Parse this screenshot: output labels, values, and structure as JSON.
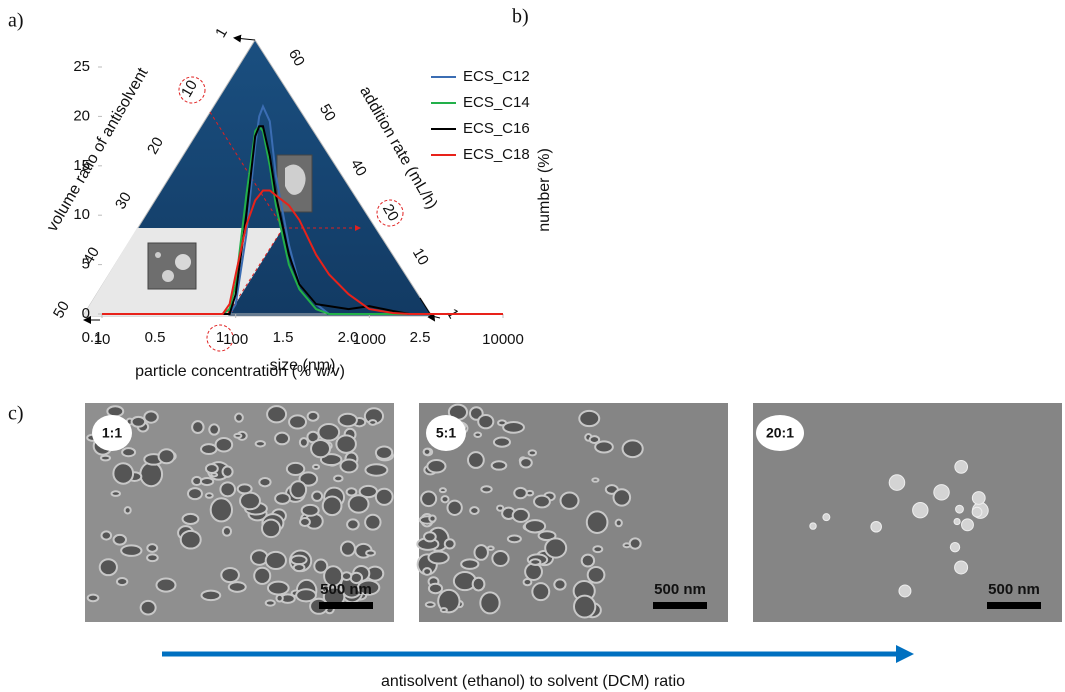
{
  "panel_a": {
    "label": "a)",
    "left_axis": {
      "title": "volume ratio of antisolvent",
      "ticks": [
        "1",
        "10",
        "20",
        "30",
        "40",
        "50"
      ]
    },
    "right_axis": {
      "title": "addition rate (mL/h)",
      "ticks": [
        "60",
        "50",
        "40",
        "20",
        "10",
        "1"
      ]
    },
    "bottom_axis": {
      "title": "particle concentration (% w/v)",
      "ticks": [
        "0.1",
        "0.5",
        "1",
        "1.5",
        "2.0",
        "2.5"
      ]
    }
  },
  "chart_data": {
    "type": "line",
    "panel_label": "b)",
    "x_label": "size (nm)",
    "y_label": "number (%)",
    "x": [
      10,
      80,
      90,
      100,
      120,
      140,
      150,
      160,
      180,
      200,
      250,
      300,
      400,
      500,
      700,
      1000,
      1500,
      2000,
      3000,
      10000
    ],
    "xscale": "log",
    "xlim": [
      10,
      10000
    ],
    "xticks": [
      10,
      100,
      1000,
      10000
    ],
    "ylim": [
      0,
      25
    ],
    "yticks": [
      0,
      5,
      10,
      15,
      20,
      25
    ],
    "legend": "upper right",
    "series": [
      {
        "name": "ECS_C12",
        "color": "#3b6db3",
        "values": [
          0,
          0,
          0,
          1,
          8,
          17,
          20,
          21,
          19.5,
          14,
          7,
          3,
          1,
          0,
          0,
          0,
          0,
          0,
          0,
          0
        ]
      },
      {
        "name": "ECS_C14",
        "color": "#22b04a",
        "values": [
          0,
          0,
          0.5,
          3,
          12,
          18.5,
          19,
          18.5,
          15,
          11,
          5,
          2.5,
          0.5,
          0,
          0,
          0,
          0,
          0,
          0,
          0
        ]
      },
      {
        "name": "ECS_C16",
        "color": "#000000",
        "values": [
          0,
          0,
          0,
          2,
          10,
          18,
          19,
          19,
          16,
          12,
          6,
          3,
          1,
          0.8,
          0.5,
          0.8,
          0.3,
          0,
          0,
          0
        ]
      },
      {
        "name": "ECS_C18",
        "color": "#e8221a",
        "values": [
          0,
          0,
          1,
          4,
          9,
          11.5,
          12,
          12.5,
          12.5,
          12,
          11,
          9.5,
          6,
          4,
          2,
          0.5,
          0.1,
          0,
          0,
          0
        ]
      }
    ]
  },
  "panel_c": {
    "label": "c)",
    "images": [
      {
        "label": "1:1",
        "scale_bar": "500 nm"
      },
      {
        "label": "5:1",
        "scale_bar": "500 nm"
      },
      {
        "label": "20:1",
        "scale_bar": "500 nm"
      }
    ],
    "caption": "antisolvent (ethanol) to solvent (DCM) ratio"
  }
}
